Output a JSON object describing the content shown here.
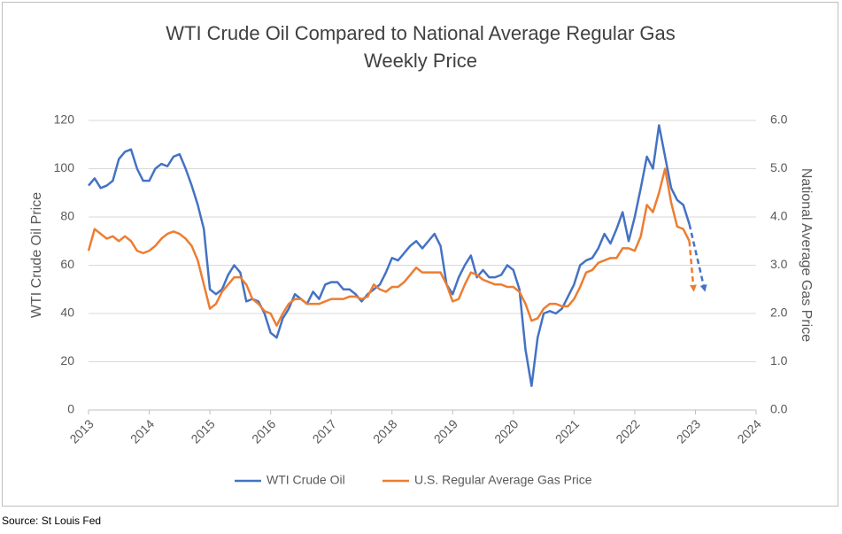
{
  "chart_data": {
    "type": "line",
    "title": [
      "WTI Crude Oil Compared to National Average Regular Gas",
      "Weekly Price"
    ],
    "y_label": "WTI Crude Oil Price",
    "y2_label": "National Average Gas Price",
    "source": "Source: St Louis Fed",
    "x": [
      2013.0,
      2013.1,
      2013.2,
      2013.3,
      2013.4,
      2013.5,
      2013.6,
      2013.7,
      2013.8,
      2013.9,
      2014.0,
      2014.1,
      2014.2,
      2014.3,
      2014.4,
      2014.5,
      2014.6,
      2014.7,
      2014.8,
      2014.9,
      2015.0,
      2015.1,
      2015.2,
      2015.3,
      2015.4,
      2015.5,
      2015.6,
      2015.7,
      2015.8,
      2015.9,
      2016.0,
      2016.1,
      2016.2,
      2016.3,
      2016.4,
      2016.5,
      2016.6,
      2016.7,
      2016.8,
      2016.9,
      2017.0,
      2017.1,
      2017.2,
      2017.3,
      2017.4,
      2017.5,
      2017.6,
      2017.7,
      2017.8,
      2017.9,
      2018.0,
      2018.1,
      2018.2,
      2018.3,
      2018.4,
      2018.5,
      2018.6,
      2018.7,
      2018.8,
      2018.9,
      2019.0,
      2019.1,
      2019.2,
      2019.3,
      2019.4,
      2019.5,
      2019.6,
      2019.7,
      2019.8,
      2019.9,
      2020.0,
      2020.1,
      2020.2,
      2020.3,
      2020.4,
      2020.5,
      2020.6,
      2020.7,
      2020.8,
      2020.9,
      2021.0,
      2021.1,
      2021.2,
      2021.3,
      2021.4,
      2021.5,
      2021.6,
      2021.7,
      2021.8,
      2021.9,
      2022.0,
      2022.1,
      2022.2,
      2022.3,
      2022.4,
      2022.5,
      2022.6,
      2022.7,
      2022.8,
      2022.9
    ],
    "series": [
      {
        "name": "WTI Crude Oil",
        "color": "#4472c4",
        "axis": "y",
        "values": [
          93,
          96,
          92,
          93,
          95,
          104,
          107,
          108,
          100,
          95,
          95,
          100,
          102,
          101,
          105,
          106,
          100,
          93,
          85,
          75,
          50,
          48,
          50,
          56,
          60,
          57,
          45,
          46,
          45,
          40,
          32,
          30,
          38,
          42,
          48,
          46,
          44,
          49,
          46,
          52,
          53,
          53,
          50,
          50,
          48,
          45,
          48,
          50,
          52,
          57,
          63,
          62,
          65,
          68,
          70,
          67,
          70,
          73,
          68,
          52,
          48,
          55,
          60,
          64,
          55,
          58,
          55,
          55,
          56,
          60,
          58,
          50,
          25,
          10,
          30,
          40,
          41,
          40,
          42,
          47,
          52,
          60,
          62,
          63,
          67,
          73,
          69,
          75,
          82,
          70,
          80,
          92,
          105,
          100,
          118,
          105,
          92,
          87,
          85,
          77
        ],
        "projection": {
          "x": [
            2022.9,
            2023.15
          ],
          "values": [
            77,
            50
          ]
        }
      },
      {
        "name": "U.S. Regular Average Gas Price",
        "color": "#ed7d31",
        "axis": "y2",
        "values": [
          3.3,
          3.75,
          3.65,
          3.55,
          3.6,
          3.5,
          3.6,
          3.5,
          3.3,
          3.25,
          3.3,
          3.4,
          3.55,
          3.65,
          3.7,
          3.65,
          3.55,
          3.4,
          3.1,
          2.6,
          2.1,
          2.2,
          2.45,
          2.6,
          2.75,
          2.75,
          2.6,
          2.3,
          2.2,
          2.05,
          2.0,
          1.75,
          2.0,
          2.2,
          2.3,
          2.3,
          2.2,
          2.2,
          2.2,
          2.25,
          2.3,
          2.3,
          2.3,
          2.35,
          2.35,
          2.3,
          2.35,
          2.6,
          2.5,
          2.45,
          2.55,
          2.55,
          2.65,
          2.8,
          2.95,
          2.85,
          2.85,
          2.85,
          2.85,
          2.6,
          2.25,
          2.3,
          2.6,
          2.85,
          2.8,
          2.7,
          2.65,
          2.6,
          2.6,
          2.55,
          2.55,
          2.45,
          2.2,
          1.85,
          1.9,
          2.1,
          2.2,
          2.2,
          2.15,
          2.15,
          2.3,
          2.55,
          2.85,
          2.9,
          3.05,
          3.1,
          3.15,
          3.15,
          3.35,
          3.35,
          3.3,
          3.6,
          4.25,
          4.1,
          4.5,
          5.0,
          4.3,
          3.8,
          3.75,
          3.5
        ],
        "projection": {
          "x": [
            2022.9,
            2022.97
          ],
          "values": [
            3.5,
            2.5
          ]
        }
      }
    ],
    "xlim": [
      2013,
      2024
    ],
    "xticks": [
      2013,
      2014,
      2015,
      2016,
      2017,
      2018,
      2019,
      2020,
      2021,
      2022,
      2023,
      2024
    ],
    "ylim": [
      0,
      120
    ],
    "yticks": [
      0,
      20,
      40,
      60,
      80,
      100,
      120
    ],
    "y2lim": [
      0,
      6
    ],
    "y2ticks": [
      {
        "value": 0,
        "label": "0.0"
      },
      {
        "value": 1,
        "label": "1.0"
      },
      {
        "value": 2,
        "label": "2.0"
      },
      {
        "value": 3,
        "label": "3.0"
      },
      {
        "value": 4,
        "label": "4.0"
      },
      {
        "value": 5,
        "label": "5.0"
      },
      {
        "value": 6,
        "label": "6.0"
      }
    ],
    "grid": true,
    "legend": "bottom"
  }
}
